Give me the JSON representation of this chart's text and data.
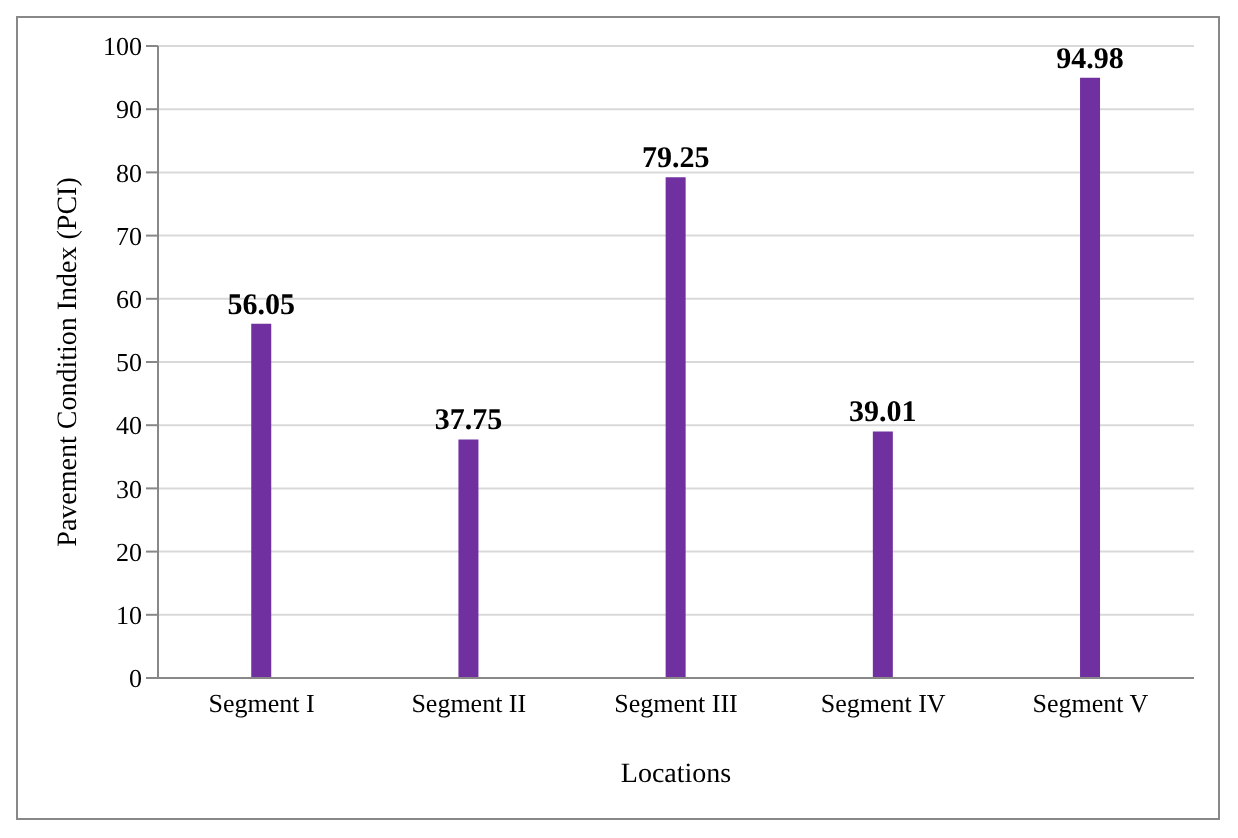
{
  "chart_data": {
    "type": "bar",
    "xlabel": "Locations",
    "ylabel": "Pavement Condition Index (PCI)",
    "categories": [
      "Segment I",
      "Segment II",
      "Segment III",
      "Segment IV",
      "Segment V"
    ],
    "values": [
      56.05,
      37.75,
      79.25,
      39.01,
      94.98
    ],
    "color": "#7030a0",
    "ylim": [
      0,
      100
    ],
    "yticks": [
      0,
      10,
      20,
      30,
      40,
      50,
      60,
      70,
      80,
      90,
      100
    ],
    "grid": "y",
    "data_labels": true
  }
}
